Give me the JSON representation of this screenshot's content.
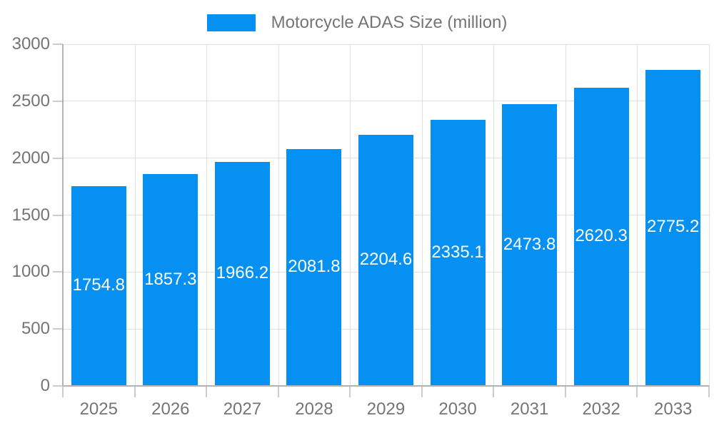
{
  "chart_data": {
    "type": "bar",
    "title": "",
    "legend": {
      "position": "top",
      "label": "Motorcycle ADAS Size (million)"
    },
    "categories": [
      "2025",
      "2026",
      "2027",
      "2028",
      "2029",
      "2030",
      "2031",
      "2032",
      "2033"
    ],
    "values": [
      1754.8,
      1857.3,
      1966.2,
      2081.8,
      2204.6,
      2335.1,
      2473.8,
      2620.3,
      2775.2
    ],
    "xlabel": "",
    "ylabel": "",
    "ylim": [
      0,
      3000
    ],
    "yticks": [
      0,
      500,
      1000,
      1500,
      2000,
      2500,
      3000
    ],
    "grid": true,
    "colors": {
      "bar": "#0691F2",
      "axis_text": "#757575",
      "bar_label_text": "#FFFFFF",
      "gridline": "#E0E0E0",
      "axis_line": "#B3B3B3",
      "tick": "#CCCCCC",
      "background": "#FFFFFF"
    }
  }
}
